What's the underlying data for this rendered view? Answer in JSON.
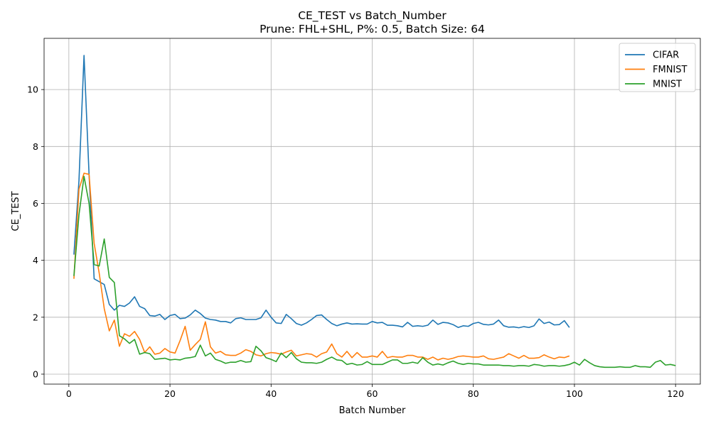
{
  "chart_data": {
    "type": "line",
    "title": "CE_TEST vs Batch_Number",
    "subtitle": "Prune: FHL+SHL, P%: 0.5, Batch Size: 64",
    "xlabel": "Batch Number",
    "ylabel": "CE_TEST",
    "xlim": [
      -4.9,
      124.9
    ],
    "ylim": [
      -0.35,
      11.8
    ],
    "xticks": [
      0,
      20,
      40,
      60,
      80,
      100,
      120
    ],
    "yticks": [
      0,
      2,
      4,
      6,
      8,
      10
    ],
    "grid": true,
    "legend_position": "top-right",
    "series": [
      {
        "name": "CIFAR",
        "color": "#1f77b4",
        "x_start": 1,
        "values": [
          4.2,
          6.8,
          11.2,
          7.0,
          3.35,
          3.25,
          3.15,
          2.45,
          2.25,
          2.42,
          2.38,
          2.5,
          2.72,
          2.38,
          2.3,
          2.06,
          2.04,
          2.1,
          1.92,
          2.06,
          2.1,
          1.95,
          1.97,
          2.08,
          2.25,
          2.13,
          1.97,
          1.92,
          1.9,
          1.85,
          1.85,
          1.8,
          1.95,
          1.98,
          1.92,
          1.92,
          1.92,
          1.98,
          2.25,
          2.0,
          1.8,
          1.78,
          2.1,
          1.95,
          1.78,
          1.72,
          1.8,
          1.92,
          2.06,
          2.08,
          1.92,
          1.78,
          1.7,
          1.76,
          1.8,
          1.76,
          1.77,
          1.76,
          1.76,
          1.85,
          1.8,
          1.82,
          1.72,
          1.72,
          1.7,
          1.66,
          1.82,
          1.68,
          1.7,
          1.68,
          1.72,
          1.9,
          1.75,
          1.82,
          1.8,
          1.74,
          1.64,
          1.7,
          1.68,
          1.78,
          1.82,
          1.75,
          1.73,
          1.76,
          1.9,
          1.7,
          1.65,
          1.66,
          1.63,
          1.67,
          1.64,
          1.7,
          1.94,
          1.78,
          1.83,
          1.73,
          1.74,
          1.88,
          1.64
        ]
      },
      {
        "name": "FMNIST",
        "color": "#ff7f0e",
        "x_start": 1,
        "values": [
          3.35,
          6.5,
          7.06,
          7.02,
          4.6,
          3.55,
          2.3,
          1.52,
          1.9,
          0.98,
          1.42,
          1.33,
          1.5,
          1.22,
          0.76,
          0.96,
          0.7,
          0.74,
          0.9,
          0.78,
          0.74,
          1.18,
          1.68,
          0.84,
          1.04,
          1.22,
          1.84,
          0.96,
          0.74,
          0.8,
          0.68,
          0.66,
          0.66,
          0.74,
          0.86,
          0.8,
          0.68,
          0.64,
          0.72,
          0.76,
          0.74,
          0.7,
          0.78,
          0.84,
          0.64,
          0.68,
          0.72,
          0.7,
          0.6,
          0.72,
          0.78,
          1.06,
          0.72,
          0.6,
          0.8,
          0.58,
          0.76,
          0.6,
          0.6,
          0.64,
          0.6,
          0.8,
          0.58,
          0.62,
          0.6,
          0.6,
          0.66,
          0.66,
          0.6,
          0.6,
          0.52,
          0.6,
          0.5,
          0.56,
          0.52,
          0.56,
          0.62,
          0.64,
          0.62,
          0.6,
          0.6,
          0.64,
          0.54,
          0.52,
          0.56,
          0.6,
          0.72,
          0.64,
          0.56,
          0.66,
          0.56,
          0.56,
          0.58,
          0.68,
          0.6,
          0.54,
          0.6,
          0.58,
          0.64
        ]
      },
      {
        "name": "MNIST",
        "color": "#2ca02c",
        "x_start": 1,
        "values": [
          3.45,
          5.6,
          6.95,
          6.0,
          3.85,
          3.8,
          4.75,
          3.4,
          3.22,
          1.35,
          1.24,
          1.08,
          1.22,
          0.7,
          0.76,
          0.72,
          0.52,
          0.54,
          0.56,
          0.5,
          0.52,
          0.5,
          0.56,
          0.58,
          0.62,
          1.02,
          0.64,
          0.74,
          0.52,
          0.46,
          0.38,
          0.42,
          0.42,
          0.48,
          0.42,
          0.44,
          0.98,
          0.82,
          0.58,
          0.52,
          0.44,
          0.74,
          0.58,
          0.76,
          0.54,
          0.42,
          0.4,
          0.4,
          0.38,
          0.42,
          0.52,
          0.6,
          0.5,
          0.48,
          0.34,
          0.38,
          0.32,
          0.34,
          0.44,
          0.34,
          0.34,
          0.34,
          0.42,
          0.5,
          0.5,
          0.38,
          0.38,
          0.42,
          0.38,
          0.58,
          0.42,
          0.32,
          0.36,
          0.32,
          0.4,
          0.46,
          0.38,
          0.34,
          0.38,
          0.36,
          0.36,
          0.32,
          0.32,
          0.32,
          0.32,
          0.3,
          0.3,
          0.28,
          0.3,
          0.3,
          0.28,
          0.34,
          0.32,
          0.28,
          0.3,
          0.3,
          0.28,
          0.3,
          0.34,
          0.42,
          0.32,
          0.52,
          0.4,
          0.3,
          0.26,
          0.24,
          0.24,
          0.24,
          0.26,
          0.24,
          0.24,
          0.3,
          0.26,
          0.26,
          0.24,
          0.42,
          0.48,
          0.32,
          0.34,
          0.3
        ]
      }
    ]
  }
}
